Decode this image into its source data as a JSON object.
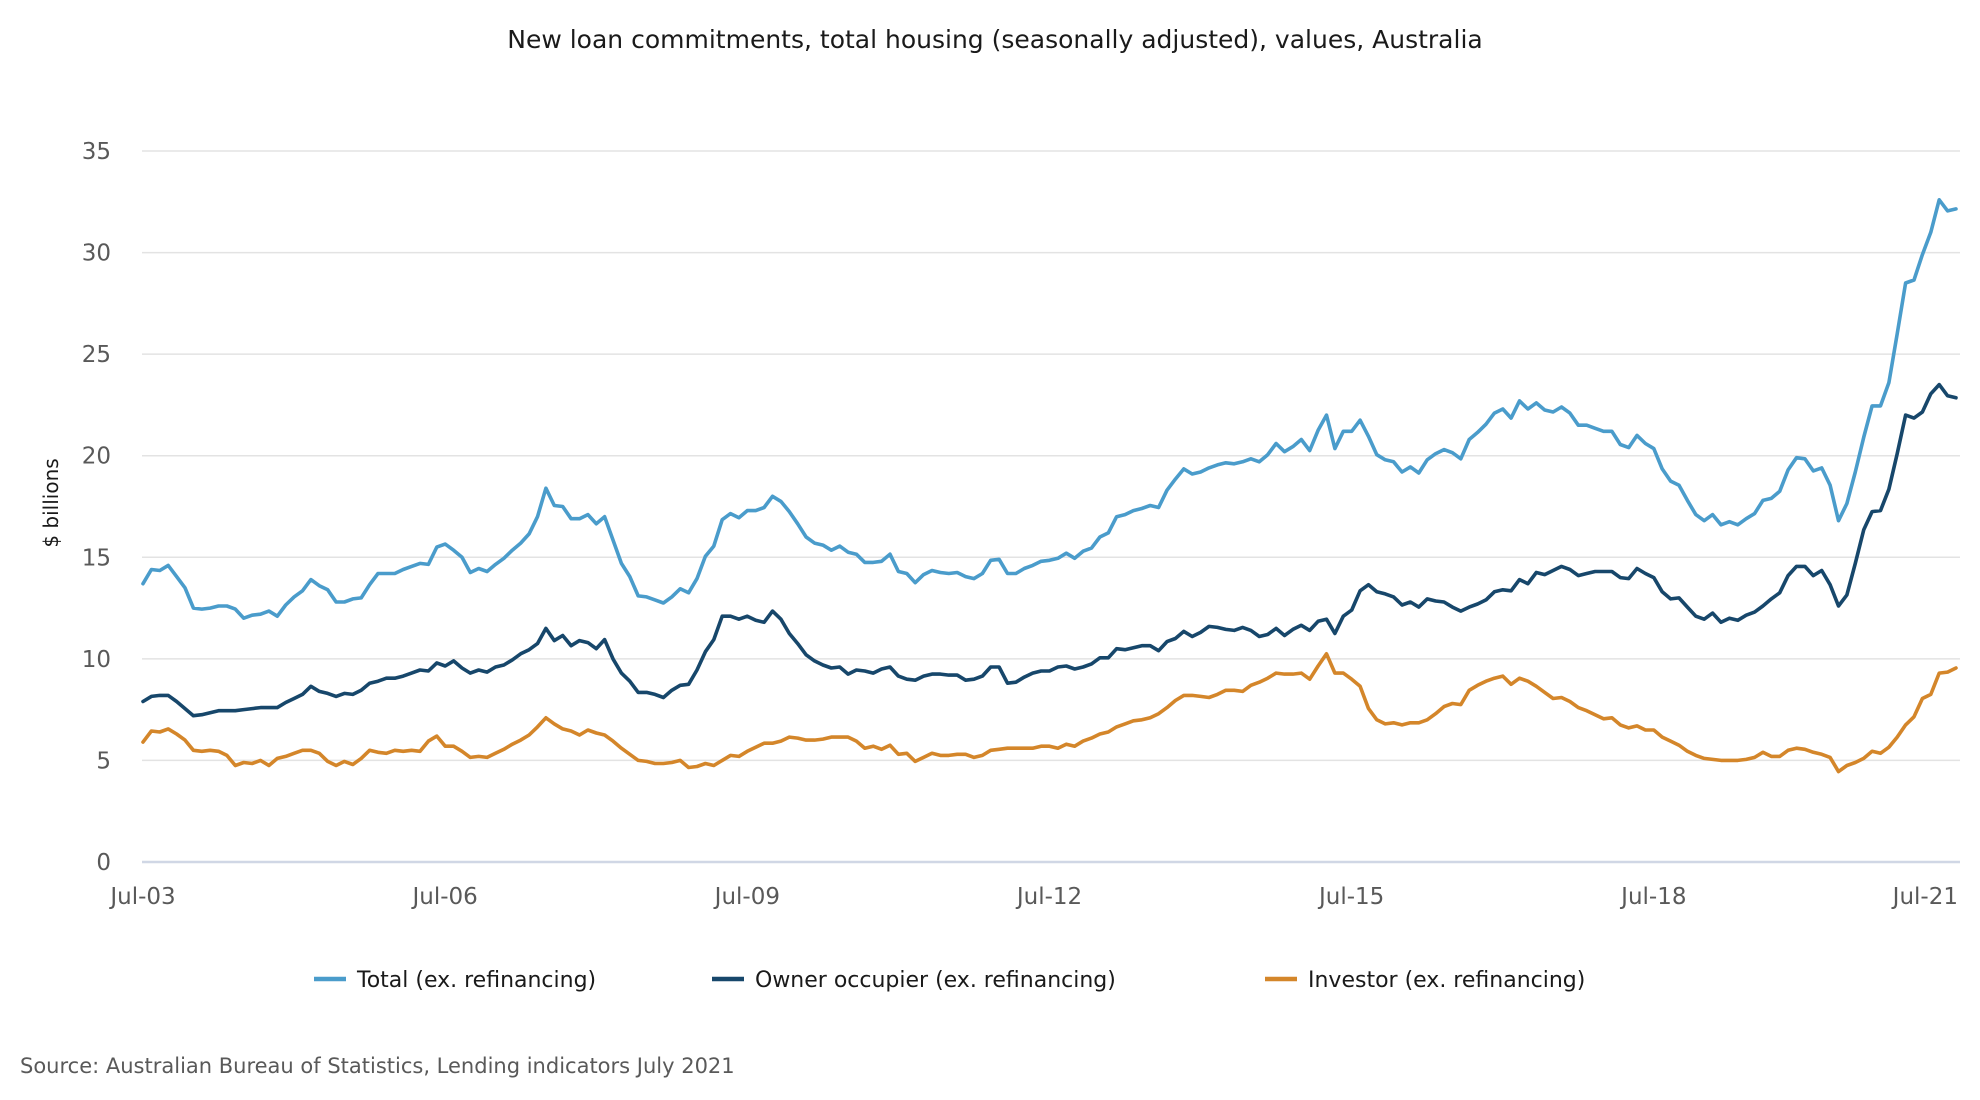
{
  "chart_data": {
    "type": "line",
    "title": "New loan commitments, total housing (seasonally adjusted), values, Australia",
    "xlabel": "",
    "ylabel": "$ billions",
    "x_start": "Jul-03",
    "x_end": "Jul-21",
    "x_frequency": "monthly",
    "x_tick_labels": [
      "Jul-03",
      "Jul-06",
      "Jul-09",
      "Jul-12",
      "Jul-15",
      "Jul-18",
      "Jul-21"
    ],
    "x_tick_month_index": [
      0,
      36,
      72,
      108,
      144,
      180,
      216
    ],
    "ylim": [
      0,
      35
    ],
    "y_ticks": [
      0,
      5,
      10,
      15,
      20,
      25,
      30,
      35
    ],
    "grid": true,
    "legend_position": "bottom",
    "source": "Source: Australian Bureau of Statistics, Lending indicators July 2021",
    "series": [
      {
        "name": "Total (ex. refinancing)",
        "color": "#4a9ccb",
        "values": [
          13.7,
          14.4,
          14.35,
          14.6,
          14.05,
          13.5,
          12.5,
          12.45,
          12.5,
          12.6,
          12.6,
          12.45,
          12.0,
          12.15,
          12.2,
          12.35,
          12.1,
          12.65,
          13.05,
          13.35,
          13.9,
          13.6,
          13.4,
          12.8,
          12.8,
          12.95,
          13.0,
          13.65,
          14.2,
          14.2,
          14.2,
          14.4,
          14.55,
          14.7,
          14.65,
          15.5,
          15.65,
          15.35,
          15.0,
          14.25,
          14.45,
          14.3,
          14.65,
          14.95,
          15.35,
          15.7,
          16.15,
          17.0,
          18.4,
          17.55,
          17.5,
          16.9,
          16.9,
          17.1,
          16.65,
          17.0,
          15.85,
          14.7,
          14.05,
          13.1,
          13.05,
          12.9,
          12.75,
          13.05,
          13.45,
          13.25,
          13.95,
          15.05,
          15.55,
          16.85,
          17.15,
          16.95,
          17.3,
          17.3,
          17.45,
          18.0,
          17.75,
          17.25,
          16.65,
          16.0,
          15.7,
          15.6,
          15.35,
          15.55,
          15.25,
          15.15,
          14.75,
          14.75,
          14.8,
          15.15,
          14.3,
          14.2,
          13.75,
          14.15,
          14.35,
          14.25,
          14.2,
          14.25,
          14.05,
          13.95,
          14.2,
          14.85,
          14.9,
          14.2,
          14.2,
          14.45,
          14.6,
          14.8,
          14.85,
          14.95,
          15.2,
          14.95,
          15.3,
          15.45,
          16.0,
          16.2,
          17.0,
          17.1,
          17.3,
          17.4,
          17.55,
          17.45,
          18.3,
          18.85,
          19.35,
          19.1,
          19.2,
          19.4,
          19.55,
          19.65,
          19.6,
          19.7,
          19.85,
          19.7,
          20.05,
          20.6,
          20.2,
          20.45,
          20.8,
          20.25,
          21.25,
          22.0,
          20.35,
          21.2,
          21.2,
          21.75,
          20.95,
          20.05,
          19.8,
          19.7,
          19.2,
          19.45,
          19.15,
          19.8,
          20.1,
          20.3,
          20.15,
          19.85,
          20.8,
          21.15,
          21.55,
          22.1,
          22.3,
          21.85,
          22.7,
          22.3,
          22.6,
          22.25,
          22.15,
          22.4,
          22.1,
          21.5,
          21.5,
          21.35,
          21.2,
          21.2,
          20.55,
          20.4,
          21.0,
          20.6,
          20.35,
          19.35,
          18.75,
          18.55,
          17.8,
          17.1,
          16.8,
          17.1,
          16.6,
          16.75,
          16.6,
          16.9,
          17.15,
          17.8,
          17.9,
          18.25,
          19.3,
          19.9,
          19.85,
          19.25,
          19.4,
          18.55,
          16.8,
          17.65,
          19.2,
          20.9,
          22.45,
          22.45,
          23.6,
          26.0,
          28.5,
          28.65,
          29.9,
          31.0,
          32.6,
          32.05,
          32.15
        ]
      },
      {
        "name": "Owner occupier (ex. refinancing)",
        "color": "#17476b",
        "values": [
          7.9,
          8.15,
          8.2,
          8.2,
          7.9,
          7.55,
          7.2,
          7.25,
          7.35,
          7.45,
          7.45,
          7.45,
          7.5,
          7.55,
          7.6,
          7.6,
          7.6,
          7.85,
          8.05,
          8.25,
          8.65,
          8.4,
          8.3,
          8.15,
          8.3,
          8.25,
          8.45,
          8.8,
          8.9,
          9.05,
          9.05,
          9.15,
          9.3,
          9.45,
          9.4,
          9.8,
          9.65,
          9.9,
          9.55,
          9.3,
          9.45,
          9.35,
          9.6,
          9.7,
          9.95,
          10.25,
          10.45,
          10.75,
          11.5,
          10.9,
          11.15,
          10.65,
          10.9,
          10.8,
          10.5,
          10.95,
          10.0,
          9.3,
          8.9,
          8.35,
          8.35,
          8.25,
          8.1,
          8.45,
          8.7,
          8.75,
          9.45,
          10.35,
          10.95,
          12.1,
          12.1,
          11.95,
          12.1,
          11.9,
          11.8,
          12.35,
          11.95,
          11.25,
          10.75,
          10.2,
          9.9,
          9.7,
          9.55,
          9.6,
          9.25,
          9.45,
          9.4,
          9.3,
          9.5,
          9.6,
          9.15,
          9.0,
          8.95,
          9.15,
          9.25,
          9.25,
          9.2,
          9.2,
          8.95,
          9.0,
          9.15,
          9.6,
          9.6,
          8.8,
          8.85,
          9.1,
          9.3,
          9.4,
          9.4,
          9.6,
          9.65,
          9.5,
          9.6,
          9.75,
          10.05,
          10.05,
          10.5,
          10.45,
          10.55,
          10.65,
          10.65,
          10.4,
          10.85,
          11.0,
          11.35,
          11.1,
          11.3,
          11.6,
          11.55,
          11.45,
          11.4,
          11.55,
          11.4,
          11.1,
          11.2,
          11.5,
          11.15,
          11.45,
          11.65,
          11.4,
          11.85,
          11.95,
          11.25,
          12.1,
          12.4,
          13.35,
          13.65,
          13.3,
          13.2,
          13.05,
          12.65,
          12.8,
          12.55,
          12.95,
          12.85,
          12.8,
          12.55,
          12.35,
          12.55,
          12.7,
          12.9,
          13.3,
          13.4,
          13.35,
          13.9,
          13.7,
          14.25,
          14.15,
          14.35,
          14.55,
          14.4,
          14.1,
          14.2,
          14.3,
          14.3,
          14.3,
          14.0,
          13.95,
          14.45,
          14.2,
          14.0,
          13.3,
          12.95,
          13.0,
          12.55,
          12.1,
          11.95,
          12.25,
          11.8,
          12.0,
          11.9,
          12.15,
          12.3,
          12.6,
          12.95,
          13.25,
          14.1,
          14.55,
          14.55,
          14.1,
          14.35,
          13.65,
          12.6,
          13.15,
          14.7,
          16.35,
          17.25,
          17.3,
          18.35,
          20.1,
          22.0,
          21.85,
          22.15,
          23.05,
          23.5,
          22.95,
          22.85
        ]
      },
      {
        "name": "Investor (ex. refinancing)",
        "color": "#d4862a",
        "values": [
          5.9,
          6.45,
          6.4,
          6.55,
          6.3,
          6.0,
          5.5,
          5.45,
          5.5,
          5.45,
          5.25,
          4.75,
          4.9,
          4.85,
          5.0,
          4.75,
          5.1,
          5.2,
          5.35,
          5.5,
          5.5,
          5.35,
          4.95,
          4.75,
          4.95,
          4.8,
          5.1,
          5.5,
          5.4,
          5.35,
          5.5,
          5.45,
          5.5,
          5.45,
          5.95,
          6.2,
          5.7,
          5.7,
          5.45,
          5.15,
          5.2,
          5.15,
          5.35,
          5.55,
          5.8,
          6.0,
          6.25,
          6.65,
          7.1,
          6.8,
          6.55,
          6.45,
          6.25,
          6.5,
          6.35,
          6.25,
          5.95,
          5.6,
          5.3,
          5.0,
          4.95,
          4.85,
          4.85,
          4.9,
          5.0,
          4.65,
          4.7,
          4.85,
          4.75,
          5.0,
          5.25,
          5.2,
          5.45,
          5.65,
          5.85,
          5.85,
          5.95,
          6.15,
          6.1,
          6.0,
          6.0,
          6.05,
          6.15,
          6.15,
          6.15,
          5.95,
          5.6,
          5.7,
          5.55,
          5.75,
          5.3,
          5.35,
          4.95,
          5.15,
          5.35,
          5.25,
          5.25,
          5.3,
          5.3,
          5.15,
          5.25,
          5.5,
          5.55,
          5.6,
          5.6,
          5.6,
          5.6,
          5.7,
          5.7,
          5.6,
          5.8,
          5.7,
          5.95,
          6.1,
          6.3,
          6.4,
          6.65,
          6.8,
          6.95,
          7.0,
          7.1,
          7.3,
          7.6,
          7.95,
          8.2,
          8.2,
          8.15,
          8.1,
          8.25,
          8.45,
          8.45,
          8.4,
          8.7,
          8.85,
          9.05,
          9.3,
          9.25,
          9.25,
          9.3,
          9.0,
          9.65,
          10.25,
          9.3,
          9.3,
          9.0,
          8.65,
          7.55,
          7.0,
          6.8,
          6.85,
          6.75,
          6.85,
          6.85,
          7.0,
          7.3,
          7.65,
          7.8,
          7.75,
          8.45,
          8.7,
          8.9,
          9.05,
          9.15,
          8.75,
          9.05,
          8.9,
          8.65,
          8.35,
          8.05,
          8.1,
          7.9,
          7.6,
          7.45,
          7.25,
          7.05,
          7.1,
          6.75,
          6.6,
          6.7,
          6.5,
          6.5,
          6.15,
          5.95,
          5.75,
          5.45,
          5.25,
          5.1,
          5.05,
          5.0,
          5.0,
          5.0,
          5.05,
          5.15,
          5.4,
          5.2,
          5.2,
          5.5,
          5.6,
          5.55,
          5.4,
          5.3,
          5.15,
          4.45,
          4.75,
          4.9,
          5.1,
          5.45,
          5.35,
          5.65,
          6.15,
          6.75,
          7.15,
          8.05,
          8.25,
          9.3,
          9.35,
          9.55
        ]
      }
    ]
  }
}
